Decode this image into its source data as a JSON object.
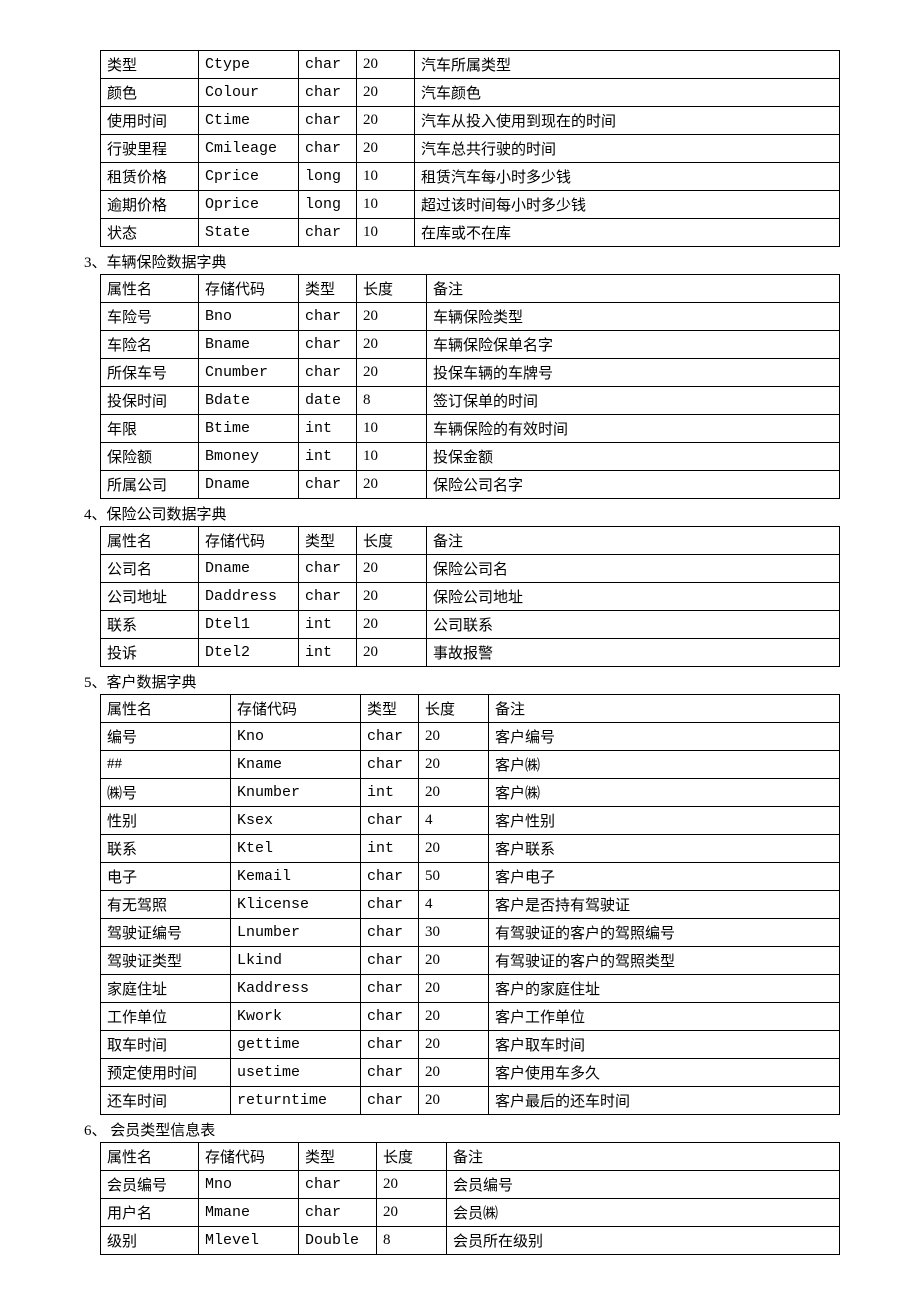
{
  "tables": [
    {
      "id": "t2",
      "title": null,
      "colWidths": [
        "98px",
        "100px",
        "58px",
        "58px",
        "auto"
      ],
      "rows": [
        [
          "类型",
          "Ctype",
          "char",
          "20",
          "汽车所属类型"
        ],
        [
          "颜色",
          "Colour",
          "char",
          "20",
          "汽车颜色"
        ],
        [
          "使用时间",
          "Ctime",
          "char",
          "20",
          "汽车从投入使用到现在的时间"
        ],
        [
          "行驶里程",
          "Cmileage",
          "char",
          "20",
          "汽车总共行驶的时间"
        ],
        [
          "租赁价格",
          "Cprice",
          "long",
          "10",
          "租赁汽车每小时多少钱"
        ],
        [
          "逾期价格",
          "Oprice",
          "long",
          "10",
          "超过该时间每小时多少钱"
        ],
        [
          "状态",
          "State",
          "char",
          "10",
          "在库或不在库"
        ]
      ]
    },
    {
      "id": "t3",
      "title": "3、车辆保险数据字典",
      "colWidths": [
        "98px",
        "100px",
        "58px",
        "70px",
        "auto"
      ],
      "rows": [
        [
          "属性名",
          "存储代码",
          "类型",
          "长度",
          "备注"
        ],
        [
          "车险号",
          "Bno",
          "char",
          "20",
          "车辆保险类型"
        ],
        [
          "车险名",
          "Bname",
          "char",
          "20",
          "车辆保险保单名字"
        ],
        [
          "所保车号",
          "Cnumber",
          "char",
          "20",
          "投保车辆的车牌号"
        ],
        [
          "投保时间",
          "Bdate",
          "date",
          "8",
          "签订保单的时间"
        ],
        [
          "年限",
          "Btime",
          "int",
          "10",
          "车辆保险的有效时间"
        ],
        [
          "保险额",
          "Bmoney",
          "int",
          "10",
          "投保金额"
        ],
        [
          "所属公司",
          "Dname",
          "char",
          "20",
          "保险公司名字"
        ]
      ]
    },
    {
      "id": "t4",
      "title": "4、保险公司数据字典",
      "colWidths": [
        "98px",
        "100px",
        "58px",
        "70px",
        "auto"
      ],
      "rows": [
        [
          "属性名",
          "存储代码",
          "类型",
          "长度",
          "备注"
        ],
        [
          "公司名",
          "Dname",
          "char",
          "20",
          "保险公司名"
        ],
        [
          "公司地址",
          "Daddress",
          "char",
          "20",
          "保险公司地址"
        ],
        [
          "联系",
          "Dtel1",
          "int",
          "20",
          "公司联系"
        ],
        [
          "投诉",
          "Dtel2",
          "int",
          "20",
          "事故报警"
        ]
      ]
    },
    {
      "id": "t5",
      "title": "5、客户数据字典",
      "colWidths": [
        "130px",
        "130px",
        "58px",
        "70px",
        "auto"
      ],
      "rows": [
        [
          "属性名",
          "存储代码",
          "类型",
          "长度",
          "备注"
        ],
        [
          "编号",
          "Kno",
          "char",
          "20",
          "客户编号"
        ],
        [
          "##",
          "Kname",
          "char",
          "20",
          "客户㈱"
        ],
        [
          "㈱号",
          "Knumber",
          "int",
          "20",
          "客户㈱"
        ],
        [
          "性别",
          "Ksex",
          "char",
          "4",
          "客户性别"
        ],
        [
          "联系",
          "Ktel",
          "int",
          "20",
          "客户联系"
        ],
        [
          "电子",
          "Kemail",
          "char",
          "50",
          "客户电子"
        ],
        [
          "有无驾照",
          "Klicense",
          "char",
          "4",
          "客户是否持有驾驶证"
        ],
        [
          "驾驶证编号",
          "Lnumber",
          "char",
          "30",
          "有驾驶证的客户的驾照编号"
        ],
        [
          "驾驶证类型",
          "Lkind",
          "char",
          "20",
          "有驾驶证的客户的驾照类型"
        ],
        [
          "家庭住址",
          "Kaddress",
          "char",
          "20",
          "客户的家庭住址"
        ],
        [
          "工作单位",
          "Kwork",
          "char",
          "20",
          "客户工作单位"
        ],
        [
          "取车时间",
          "gettime",
          "char",
          "20",
          "客户取车时间"
        ],
        [
          "预定使用时间",
          "usetime",
          "char",
          "20",
          "客户使用车多久"
        ],
        [
          "还车时间",
          "returntime",
          "char",
          "20",
          "客户最后的还车时间"
        ]
      ]
    },
    {
      "id": "t6",
      "title": "6、 会员类型信息表",
      "colWidths": [
        "98px",
        "100px",
        "78px",
        "70px",
        "auto"
      ],
      "rows": [
        [
          "属性名",
          "存储代码",
          "类型",
          "长度",
          "备注"
        ],
        [
          "会员编号",
          "Mno",
          "char",
          "20",
          "会员编号"
        ],
        [
          "用户名",
          "Mmane",
          "char",
          "20",
          "会员㈱"
        ],
        [
          "级别",
          "Mlevel",
          "Double",
          "8",
          "会员所在级别"
        ]
      ]
    }
  ]
}
